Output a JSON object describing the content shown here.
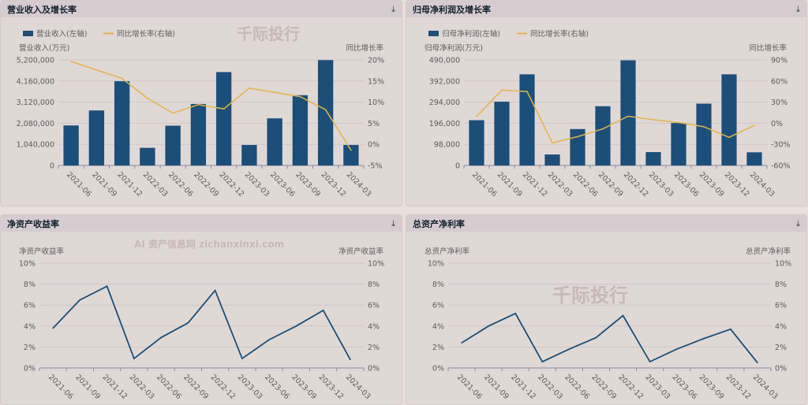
{
  "quarters": [
    "2021-06",
    "2021-09",
    "2021-12",
    "2022-03",
    "2022-06",
    "2022-09",
    "2022-12",
    "2023-03",
    "2023-06",
    "2023-09",
    "2023-12",
    "2024-03"
  ],
  "watermark": "千际投行",
  "watermark2": "AI 资产信息网 zichanxinxi.com",
  "download_icon": "download-icon",
  "colors": {
    "bar": "#1b4f7a",
    "line": "#e3b449",
    "grid": "#cfc5cc",
    "axis": "#8a8aa0"
  },
  "chart_data": [
    {
      "type": "bar",
      "title": "营业收入及增长率",
      "legend": [
        "营业收入(左轴)",
        "同比增长率(右轴)"
      ],
      "ylabel": "营业收入(万元)",
      "y2label": "同比增长率",
      "yticks": [
        "0",
        "1,040,000",
        "2,080,000",
        "3,120,000",
        "4,160,000",
        "5,200,000"
      ],
      "ylim": [
        0,
        5200000
      ],
      "y2ticks": [
        "-5%",
        "0%",
        "5%",
        "10%",
        "15%",
        "20%"
      ],
      "y2lim": [
        -5,
        20
      ],
      "values": [
        1970000,
        2710000,
        4150000,
        870000,
        1960000,
        3030000,
        4600000,
        1010000,
        2320000,
        3460000,
        5190000,
        1010000
      ],
      "line": [
        19.6,
        17.6,
        15.6,
        10.9,
        7.4,
        9.4,
        8.4,
        13.3,
        12.3,
        11.3,
        8.2,
        -1.4
      ]
    },
    {
      "type": "bar",
      "title": "归母净利润及增长率",
      "legend": [
        "归母净利润(左轴)",
        "同比增长率(右轴)"
      ],
      "ylabel": "归母净利润(万元)",
      "y2label": "同比增长率",
      "yticks": [
        "0",
        "98,000",
        "196,000",
        "294,000",
        "392,000",
        "490,000"
      ],
      "ylim": [
        0,
        490000
      ],
      "y2ticks": [
        "-60%",
        "-30%",
        "0%",
        "30%",
        "60%",
        "90%"
      ],
      "y2lim": [
        -60,
        90
      ],
      "values": [
        210000,
        296000,
        423000,
        51000,
        169000,
        275000,
        488000,
        62000,
        197000,
        287000,
        423000,
        61000
      ],
      "line": [
        9.7,
        47,
        45,
        -28,
        -19,
        -8,
        10,
        5,
        1,
        -5,
        -20,
        -3
      ]
    },
    {
      "type": "line",
      "title": "净资产收益率",
      "ylabel": "净资产收益率",
      "y2label": "净资产收益率",
      "yticks": [
        "0%",
        "2%",
        "4%",
        "6%",
        "8%",
        "10%"
      ],
      "ylim": [
        0,
        10
      ],
      "y2ticks": [
        "0%",
        "2%",
        "4%",
        "6%",
        "8%",
        "10%"
      ],
      "line": [
        3.8,
        6.5,
        7.8,
        0.9,
        2.9,
        4.3,
        7.4,
        0.9,
        2.7,
        4.0,
        5.5,
        0.8
      ]
    },
    {
      "type": "line",
      "title": "总资产净利率",
      "ylabel": "总资产净利率",
      "y2label": "总资产净利率",
      "yticks": [
        "0%",
        "2%",
        "4%",
        "6%",
        "8%",
        "10%"
      ],
      "ylim": [
        0,
        10
      ],
      "y2ticks": [
        "0%",
        "2%",
        "4%",
        "6%",
        "8%",
        "10%"
      ],
      "line": [
        2.4,
        4.0,
        5.2,
        0.6,
        1.8,
        2.9,
        5.0,
        0.6,
        1.8,
        2.8,
        3.7,
        0.5
      ]
    }
  ]
}
